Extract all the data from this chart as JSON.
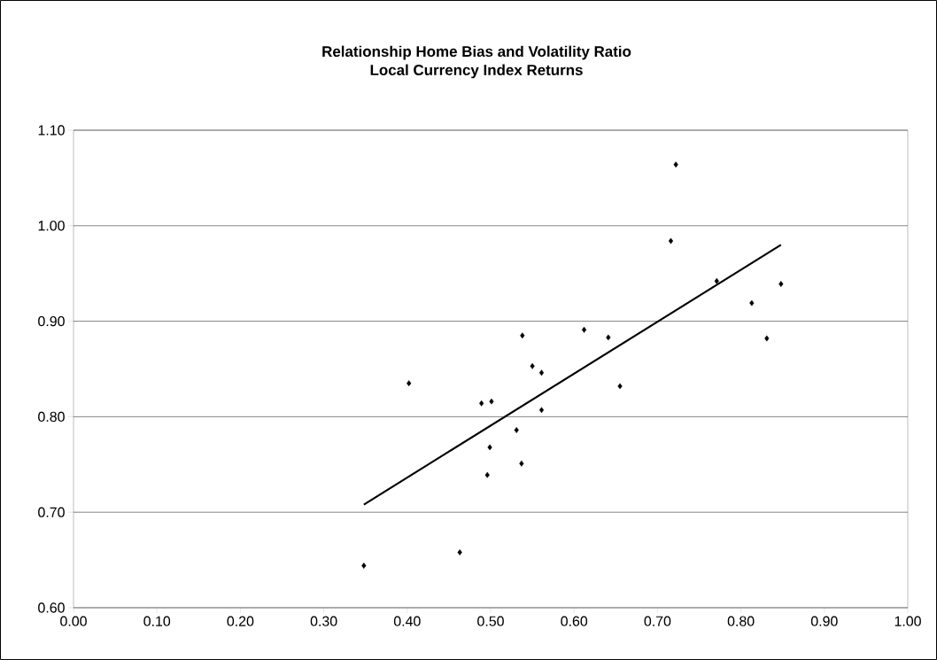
{
  "chart_data": {
    "type": "scatter",
    "title": "Relationship Home Bias and Volatility Ratio",
    "subtitle": "Local Currency Index Returns",
    "series": [
      {
        "color": "#000000",
        "marker": "diamond",
        "x": [
          0.348,
          0.402,
          0.463,
          0.489,
          0.501,
          0.499,
          0.496,
          0.531,
          0.537,
          0.538,
          0.55,
          0.561,
          0.561,
          0.612,
          0.641,
          0.655,
          0.716,
          0.722,
          0.771,
          0.813,
          0.831,
          0.848
        ],
        "values": [
          0.644,
          0.835,
          0.658,
          0.814,
          0.816,
          0.768,
          0.739,
          0.786,
          0.751,
          0.885,
          0.853,
          0.846,
          0.807,
          0.891,
          0.883,
          0.832,
          0.984,
          1.064,
          0.942,
          0.919,
          0.882,
          0.939
        ]
      },
      {
        "type": "line",
        "color": "#000000",
        "line_style": "solid",
        "x": [
          0.348,
          0.848
        ],
        "values": [
          0.708,
          0.98
        ]
      }
    ],
    "xlim": [
      0,
      1
    ],
    "ylim": [
      0.6,
      1.1
    ],
    "xticks": [
      {
        "value": 0,
        "label": "0.00"
      },
      {
        "value": 0.1,
        "label": "0.10"
      },
      {
        "value": 0.2,
        "label": "0.20"
      },
      {
        "value": 0.3,
        "label": "0.30"
      },
      {
        "value": 0.4,
        "label": "0.40"
      },
      {
        "value": 0.5,
        "label": "0.50"
      },
      {
        "value": 0.6,
        "label": "0.60"
      },
      {
        "value": 0.7,
        "label": "0.70"
      },
      {
        "value": 0.8,
        "label": "0.80"
      },
      {
        "value": 0.9,
        "label": "0.90"
      },
      {
        "value": 1,
        "label": "1.00"
      }
    ],
    "yticks": [
      {
        "value": 0.6,
        "label": "0.60"
      },
      {
        "value": 0.7,
        "label": "0.70"
      },
      {
        "value": 0.8,
        "label": "0.80"
      },
      {
        "value": 0.9,
        "label": "0.90"
      },
      {
        "value": 1.0,
        "label": "1.00"
      },
      {
        "value": 1.1,
        "label": "1.10"
      }
    ],
    "grid": "y"
  }
}
